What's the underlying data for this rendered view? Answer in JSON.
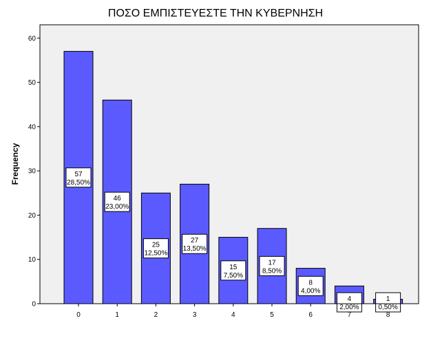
{
  "chart_data": {
    "type": "bar",
    "title": "ΠΟΣΟ ΕΜΠΙΣΤΕΥΕΣΤΕ ΤΗΝ ΚΥΒΕΡΝΗΣΗ",
    "xlabel": "",
    "ylabel": "Frequency",
    "categories": [
      "0",
      "1",
      "2",
      "3",
      "4",
      "5",
      "6",
      "7",
      "8"
    ],
    "values": [
      57,
      46,
      25,
      27,
      15,
      17,
      8,
      4,
      1
    ],
    "percent_labels": [
      "28,50%",
      "23,00%",
      "12,50%",
      "13,50%",
      "7,50%",
      "8,50%",
      "4,00%",
      "2,00%",
      "0,50%"
    ],
    "yticks": [
      "0",
      "10",
      "20",
      "30",
      "40",
      "50",
      "60"
    ],
    "ylim": [
      0,
      63
    ],
    "grid": false,
    "colors": {
      "bar_fill": "#5a5aff",
      "bar_stroke": "#000000",
      "plot_background": "#f0f0f0",
      "label_box": "#ffffff"
    }
  }
}
